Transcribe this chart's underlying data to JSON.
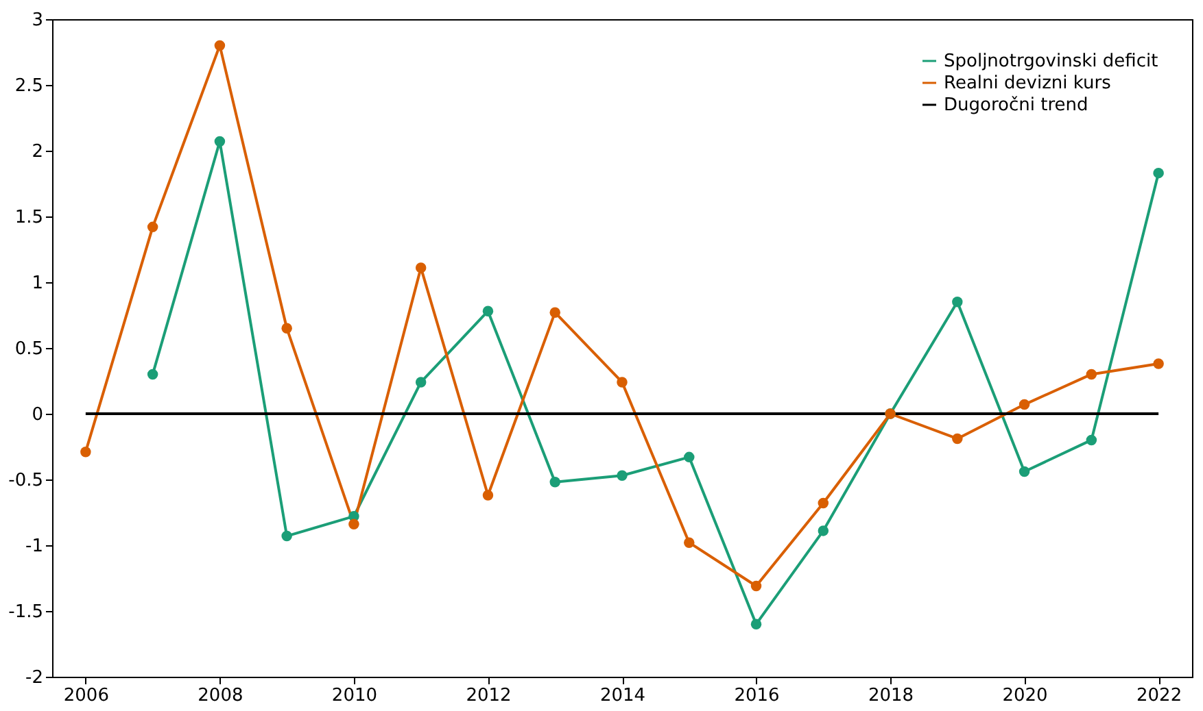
{
  "chart_data": {
    "type": "line",
    "x": [
      2006,
      2007,
      2008,
      2009,
      2010,
      2011,
      2012,
      2013,
      2014,
      2015,
      2016,
      2017,
      2018,
      2019,
      2020,
      2021,
      2022
    ],
    "series": [
      {
        "name": "Spoljnotrgovinski deficit",
        "color": "#1b9e77",
        "marker": "circle",
        "values": [
          null,
          0.3,
          2.07,
          -0.93,
          -0.78,
          0.24,
          0.78,
          -0.52,
          -0.47,
          -0.33,
          -1.6,
          -0.89,
          0,
          0.85,
          -0.44,
          -0.2,
          1.83
        ]
      },
      {
        "name": "Realni devizni kurs",
        "color": "#d95f02",
        "marker": "circle",
        "values": [
          -0.29,
          1.42,
          2.8,
          0.65,
          -0.84,
          1.11,
          -0.62,
          0.77,
          0.24,
          -0.98,
          -1.31,
          -0.68,
          0,
          -0.19,
          0.07,
          0.3,
          0.38
        ]
      },
      {
        "name": "Dugoročni trend",
        "color": "#000000",
        "marker": "none",
        "values": [
          0,
          0,
          0,
          0,
          0,
          0,
          0,
          0,
          0,
          0,
          0,
          0,
          0,
          0,
          0,
          0,
          0
        ]
      }
    ],
    "xlim": [
      2005.5,
      2022.5
    ],
    "xticks": [
      2006,
      2008,
      2010,
      2012,
      2014,
      2016,
      2018,
      2020,
      2022
    ],
    "ylim": [
      -2,
      3
    ],
    "yticks": [
      -2,
      -1.5,
      -1,
      -0.5,
      0,
      0.5,
      1,
      1.5,
      2,
      2.5,
      3
    ],
    "grid": false,
    "legend": "top right"
  }
}
